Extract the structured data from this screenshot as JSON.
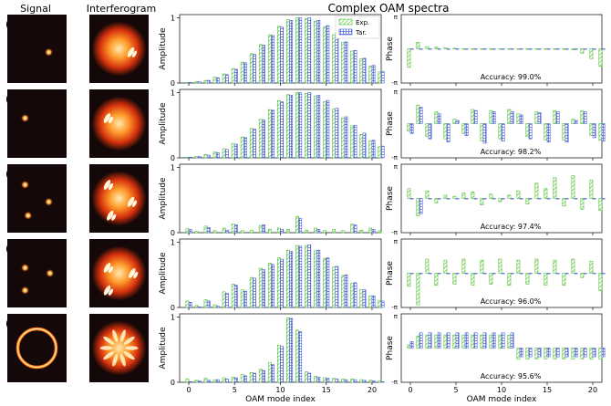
{
  "headers": {
    "signal": "Signal",
    "interferogram": "Interferogram",
    "spectra": "Complex OAM spectra"
  },
  "legend": {
    "exp": "Exp.",
    "tar": "Tar."
  },
  "colors": {
    "exp": "#4dbf2e",
    "tar": "#4a5fd6",
    "imgBg": "#140808"
  },
  "axes": {
    "amp_label": "Amplitude",
    "phase_label": "Phase",
    "xlabel": "OAM mode index",
    "amp_ticks": [
      "0",
      "1"
    ],
    "phase_ticks": [
      "-π",
      "π"
    ],
    "x_ticks": [
      "0",
      "5",
      "10",
      "15",
      "20"
    ],
    "amp_range": [
      0,
      1.05
    ],
    "phase_range": [
      -3.1416,
      3.1416
    ],
    "x_range": [
      -1,
      21
    ]
  },
  "chart_data": [
    {
      "panel": "(a)",
      "type": "bar",
      "accuracy": "Accuracy: 99.0%",
      "signal_spots": [
        [
          0.7,
          0.55
        ]
      ],
      "interf_pattern": "fork",
      "amp_target": [
        0.01,
        0.02,
        0.04,
        0.08,
        0.13,
        0.21,
        0.31,
        0.44,
        0.58,
        0.73,
        0.86,
        0.96,
        1.0,
        1.0,
        0.96,
        0.88,
        0.76,
        0.63,
        0.5,
        0.38,
        0.27,
        0.18
      ],
      "amp_exp": [
        0.01,
        0.02,
        0.04,
        0.09,
        0.14,
        0.22,
        0.32,
        0.45,
        0.59,
        0.74,
        0.87,
        0.97,
        1.0,
        0.99,
        0.95,
        0.86,
        0.74,
        0.62,
        0.49,
        0.37,
        0.26,
        0.17
      ],
      "phase_target": [
        0,
        0,
        0,
        0,
        0,
        0,
        0,
        0,
        0,
        0,
        0,
        0,
        0,
        0,
        0,
        0,
        0,
        0,
        0,
        0,
        0,
        0
      ],
      "phase_exp": [
        -1.7,
        0.6,
        0.2,
        0.15,
        0.1,
        0.05,
        0,
        0,
        0,
        0,
        0,
        0,
        0,
        0,
        0,
        0,
        0,
        0,
        -0.1,
        -0.4,
        -0.9,
        -1.6
      ]
    },
    {
      "panel": "(b)",
      "type": "bar",
      "accuracy": "Accuracy: 98.2%",
      "signal_spots": [
        [
          0.3,
          0.42
        ]
      ],
      "interf_pattern": "fork",
      "amp_target": [
        0.01,
        0.02,
        0.04,
        0.08,
        0.13,
        0.21,
        0.31,
        0.44,
        0.58,
        0.73,
        0.86,
        0.96,
        1.0,
        1.0,
        0.96,
        0.88,
        0.76,
        0.63,
        0.5,
        0.38,
        0.27,
        0.18
      ],
      "amp_exp": [
        0.01,
        0.02,
        0.05,
        0.09,
        0.14,
        0.22,
        0.32,
        0.45,
        0.59,
        0.74,
        0.88,
        0.97,
        1.0,
        0.99,
        0.95,
        0.86,
        0.75,
        0.61,
        0.49,
        0.36,
        0.26,
        0.17
      ],
      "phase_target": [
        -0.9,
        1.5,
        -1.4,
        0.9,
        -1.7,
        0.3,
        -1.1,
        1.2,
        -1.8,
        1.1,
        -1.6,
        1.1,
        0.8,
        -1.4,
        1.0,
        -1.7,
        1.1,
        -1.7,
        0.3,
        1.1,
        -1.3,
        -1.6
      ],
      "phase_exp": [
        -0.7,
        1.7,
        -1.2,
        1.1,
        -1.4,
        0.4,
        -0.9,
        1.3,
        -1.6,
        1.2,
        -1.4,
        1.3,
        0.9,
        -1.2,
        1.1,
        -1.5,
        1.2,
        -1.5,
        0.4,
        1.2,
        -1.1,
        -1.5
      ]
    },
    {
      "panel": "(c)",
      "type": "bar",
      "accuracy": "Accuracy: 97.4%",
      "signal_spots": [
        [
          0.3,
          0.3
        ],
        [
          0.7,
          0.55
        ],
        [
          0.35,
          0.75
        ]
      ],
      "interf_pattern": "multi",
      "amp_target": [
        0.05,
        0.0,
        0.08,
        0.0,
        0.04,
        0.12,
        0.0,
        0.0,
        0.12,
        0.0,
        0.05,
        0.0,
        0.22,
        0.0,
        0.05,
        0.0,
        0.0,
        0.0,
        0.12,
        0.0,
        0.05,
        0.0
      ],
      "amp_exp": [
        0.06,
        0.02,
        0.1,
        0.03,
        0.07,
        0.13,
        0.03,
        0.04,
        0.11,
        0.05,
        0.07,
        0.05,
        0.25,
        0.04,
        0.07,
        0.03,
        0.05,
        0.03,
        0.13,
        0.04,
        0.07,
        0.03
      ],
      "phase_target": [
        0,
        -1.4,
        0,
        0,
        0,
        0,
        0,
        0,
        0,
        0,
        0,
        0,
        0,
        0,
        0,
        0,
        0,
        0,
        0,
        0,
        0,
        0
      ],
      "phase_exp": [
        0.9,
        -1.6,
        0.7,
        -0.4,
        0.3,
        0.2,
        0.5,
        0.6,
        -0.6,
        0.4,
        -0.3,
        0.3,
        0.7,
        -0.5,
        1.4,
        0.9,
        1.9,
        -0.7,
        2.1,
        -1.0,
        1.7,
        -1.1
      ]
    },
    {
      "panel": "(d)",
      "type": "bar",
      "accuracy": "Accuracy: 96.0%",
      "signal_spots": [
        [
          0.3,
          0.42
        ],
        [
          0.72,
          0.5
        ],
        [
          0.3,
          0.75
        ]
      ],
      "interf_pattern": "multi",
      "amp_target": [
        0.08,
        0.01,
        0.1,
        0.02,
        0.22,
        0.34,
        0.25,
        0.45,
        0.58,
        0.66,
        0.74,
        0.86,
        0.94,
        0.96,
        0.88,
        0.76,
        0.63,
        0.5,
        0.38,
        0.27,
        0.18,
        0.1
      ],
      "amp_exp": [
        0.1,
        0.03,
        0.12,
        0.04,
        0.24,
        0.36,
        0.27,
        0.46,
        0.6,
        0.68,
        0.76,
        0.88,
        0.95,
        0.95,
        0.87,
        0.75,
        0.62,
        0.49,
        0.37,
        0.27,
        0.18,
        0.1
      ],
      "phase_target": [
        0,
        0,
        0,
        0,
        0,
        0,
        0,
        0,
        0,
        0,
        0,
        0,
        0,
        0,
        0,
        0,
        0,
        0,
        0,
        0,
        0,
        0
      ],
      "phase_exp": [
        -1.2,
        -2.9,
        1.3,
        -1.1,
        1.2,
        -1.0,
        1.3,
        -1.1,
        1.2,
        -1.0,
        1.3,
        -1.1,
        1.2,
        -1.0,
        1.3,
        -1.1,
        1.2,
        -1.1,
        1.3,
        -0.4,
        1.1,
        -1.6
      ]
    },
    {
      "panel": "(e)",
      "type": "bar",
      "accuracy": "Accuracy: 95.6%",
      "signal_spots": [],
      "interf_pattern": "ring",
      "amp_target": [
        0.01,
        0.02,
        0.03,
        0.04,
        0.05,
        0.07,
        0.1,
        0.14,
        0.18,
        0.27,
        0.55,
        0.98,
        0.78,
        0.14,
        0.08,
        0.06,
        0.05,
        0.04,
        0.04,
        0.03,
        0.02,
        0.01
      ],
      "amp_exp": [
        0.05,
        0.03,
        0.06,
        0.04,
        0.07,
        0.08,
        0.12,
        0.15,
        0.2,
        0.3,
        0.57,
        0.99,
        0.8,
        0.16,
        0.09,
        0.07,
        0.06,
        0.05,
        0.05,
        0.04,
        0.03,
        0.02
      ],
      "phase_target": [
        0.6,
        1.4,
        1.4,
        1.4,
        1.4,
        1.4,
        1.4,
        1.4,
        1.4,
        1.4,
        1.4,
        1.4,
        -0.8,
        -0.8,
        -0.8,
        -0.8,
        -0.8,
        -0.8,
        -0.8,
        -0.8,
        -0.8,
        -0.8
      ],
      "phase_exp": [
        0.3,
        1.1,
        1.2,
        1.2,
        1.2,
        1.2,
        1.2,
        1.2,
        1.2,
        1.2,
        1.2,
        1.2,
        -1.0,
        -1.0,
        -1.0,
        -1.0,
        -1.0,
        -1.0,
        -1.0,
        -1.0,
        -1.0,
        -1.0
      ]
    }
  ]
}
